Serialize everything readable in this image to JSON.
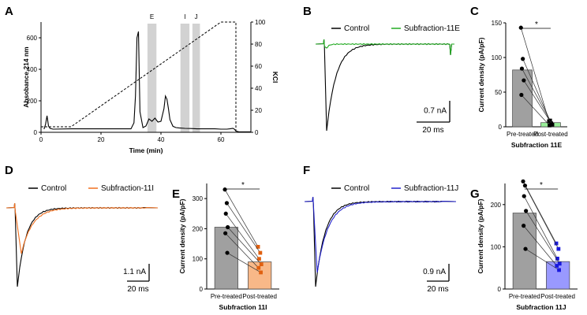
{
  "chart_data": [
    {
      "id": "A",
      "type": "line",
      "panel_label": "A",
      "xlabel": "Time (min)",
      "ylabel": "Absobance 214 nm",
      "y2label": "KCl",
      "xlim": [
        0,
        70
      ],
      "ylim": [
        0,
        700
      ],
      "y2lim": [
        0,
        100
      ],
      "xticks": [
        "0",
        "20",
        "40",
        "60"
      ],
      "yticks": [
        "0",
        "200",
        "400",
        "600"
      ],
      "y2ticks": [
        "0",
        "20",
        "40",
        "60",
        "80",
        "100"
      ],
      "fractions": [
        {
          "label": "E",
          "start": 35.5,
          "end": 38.5
        },
        {
          "label": "I",
          "start": 46.5,
          "end": 49.5
        },
        {
          "label": "J",
          "start": 50.5,
          "end": 53.0
        }
      ],
      "series": [
        {
          "name": "Absorbance",
          "style": "solid",
          "x": [
            1,
            1.5,
            2,
            2.5,
            3,
            4,
            10,
            20,
            25,
            30,
            31,
            31.5,
            32,
            32.5,
            33,
            34,
            35,
            36,
            37,
            38,
            39,
            40,
            41,
            41.5,
            42,
            42.5,
            43,
            44,
            45,
            46,
            48,
            50,
            52,
            54,
            56,
            58,
            60,
            62,
            63,
            64,
            64.5,
            65,
            66,
            70
          ],
          "y": [
            20,
            50,
            105,
            40,
            25,
            20,
            22,
            22,
            22,
            22,
            60,
            230,
            600,
            640,
            130,
            30,
            40,
            85,
            70,
            90,
            65,
            70,
            150,
            230,
            210,
            150,
            80,
            38,
            30,
            28,
            25,
            24,
            22,
            22,
            22,
            22,
            20,
            20,
            22,
            25,
            20,
            8,
            3,
            3
          ]
        },
        {
          "name": "KCl gradient",
          "style": "dashed",
          "x": [
            0,
            10,
            60,
            65,
            65
          ],
          "y2": [
            5,
            5,
            100,
            100,
            0
          ]
        }
      ]
    },
    {
      "id": "B",
      "type": "line",
      "panel_label": "B",
      "legend": [
        "Control",
        "Subfraction-11E"
      ],
      "colors": [
        "#000000",
        "#22aa22"
      ],
      "scale_bar": {
        "amplitude": "0.7 nA",
        "time": "20 ms"
      }
    },
    {
      "id": "C",
      "type": "bar",
      "panel_label": "C",
      "title": "Subfraction 11E",
      "ylabel": "Current density (pA/pF)",
      "categories": [
        "Pre-treated",
        "Post-treated"
      ],
      "values": [
        82,
        6
      ],
      "colors": [
        "#a0a0a0",
        "#99ee99"
      ],
      "point_color": "#000000",
      "pairs": [
        [
          143,
          8
        ],
        [
          98,
          5
        ],
        [
          84,
          9
        ],
        [
          67,
          3
        ],
        [
          46,
          2
        ]
      ],
      "ylim": [
        0,
        150
      ],
      "yticks": [
        "0",
        "50",
        "100",
        "150"
      ],
      "significance": "*"
    },
    {
      "id": "D",
      "type": "line",
      "panel_label": "D",
      "legend": [
        "Control",
        "Subfraction-11I"
      ],
      "colors": [
        "#000000",
        "#f07020"
      ],
      "scale_bar": {
        "amplitude": "1.1 nA",
        "time": "20 ms"
      }
    },
    {
      "id": "E",
      "type": "bar",
      "panel_label": "E",
      "title": "Subfraction 11I",
      "ylabel": "Current density (pA/pF)",
      "categories": [
        "Pre-treated",
        "Post-treated"
      ],
      "values": [
        205,
        90
      ],
      "colors": [
        "#a0a0a0",
        "#f8b888"
      ],
      "point_color": "#e06010",
      "pairs": [
        [
          330,
          140
        ],
        [
          285,
          120
        ],
        [
          250,
          100
        ],
        [
          205,
          82
        ],
        [
          185,
          70
        ],
        [
          120,
          55
        ]
      ],
      "ylim": [
        0,
        350
      ],
      "yticks": [
        "0",
        "100",
        "200",
        "300"
      ],
      "significance": "*"
    },
    {
      "id": "F",
      "type": "line",
      "panel_label": "F",
      "legend": [
        "Control",
        "Subfraction-11J"
      ],
      "colors": [
        "#000000",
        "#2222cc"
      ],
      "scale_bar": {
        "amplitude": "0.9 nA",
        "time": "20 ms"
      }
    },
    {
      "id": "G",
      "type": "bar",
      "panel_label": "G",
      "title": "Subfraction 11J",
      "ylabel": "Current density (pA/pF)",
      "categories": [
        "Pre-treated",
        "Post-treated"
      ],
      "values": [
        180,
        65
      ],
      "colors": [
        "#a0a0a0",
        "#9999ff"
      ],
      "point_color": "#1818dd",
      "pairs": [
        [
          255,
          108
        ],
        [
          245,
          95
        ],
        [
          220,
          72
        ],
        [
          185,
          60
        ],
        [
          150,
          55
        ],
        [
          95,
          45
        ]
      ],
      "ylim": [
        0,
        250
      ],
      "yticks": [
        "0",
        "100",
        "200"
      ],
      "significance": "*"
    }
  ]
}
